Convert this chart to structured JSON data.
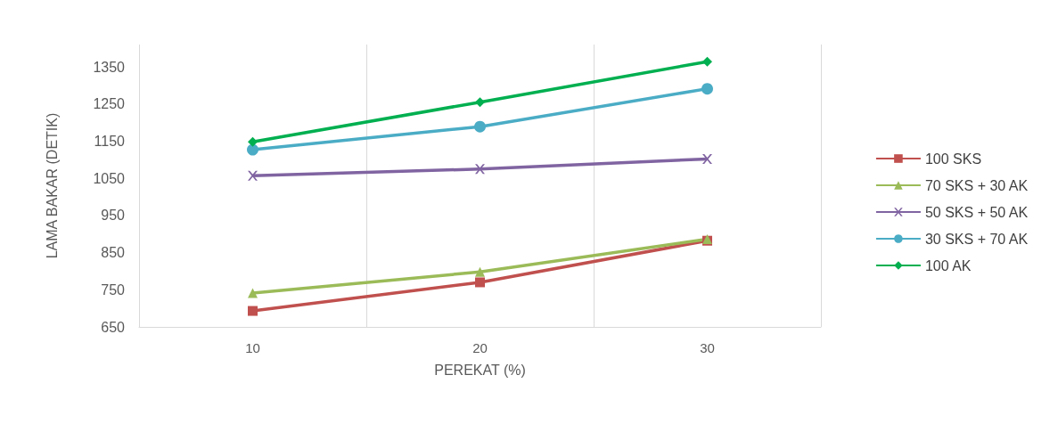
{
  "chart_data": {
    "type": "line",
    "xlabel": "PEREKAT (%)",
    "ylabel": "LAMA BAKAR (DETIK)",
    "categories": [
      "10",
      "20",
      "30"
    ],
    "ylim": [
      650,
      1410
    ],
    "yticks": [
      650,
      750,
      850,
      950,
      1050,
      1150,
      1250,
      1350
    ],
    "grid": "x",
    "legend": "right",
    "series": [
      {
        "name": "100 SKS",
        "color": "#c0504d",
        "marker": "square",
        "values": [
          693,
          770,
          882
        ]
      },
      {
        "name": "70 SKS + 30 AK",
        "color": "#9bbb59",
        "marker": "triangle",
        "values": [
          741,
          798,
          886
        ]
      },
      {
        "name": "50 SKS + 50 AK",
        "color": "#8064a2",
        "marker": "cross",
        "values": [
          1057,
          1075,
          1102
        ]
      },
      {
        "name": "30 SKS + 70 AK",
        "color": "#4bacc6",
        "marker": "circle",
        "values": [
          1127,
          1189,
          1291
        ]
      },
      {
        "name": "100 AK",
        "color": "#00b050",
        "marker": "diamond",
        "values": [
          1148,
          1255,
          1364
        ]
      }
    ]
  }
}
